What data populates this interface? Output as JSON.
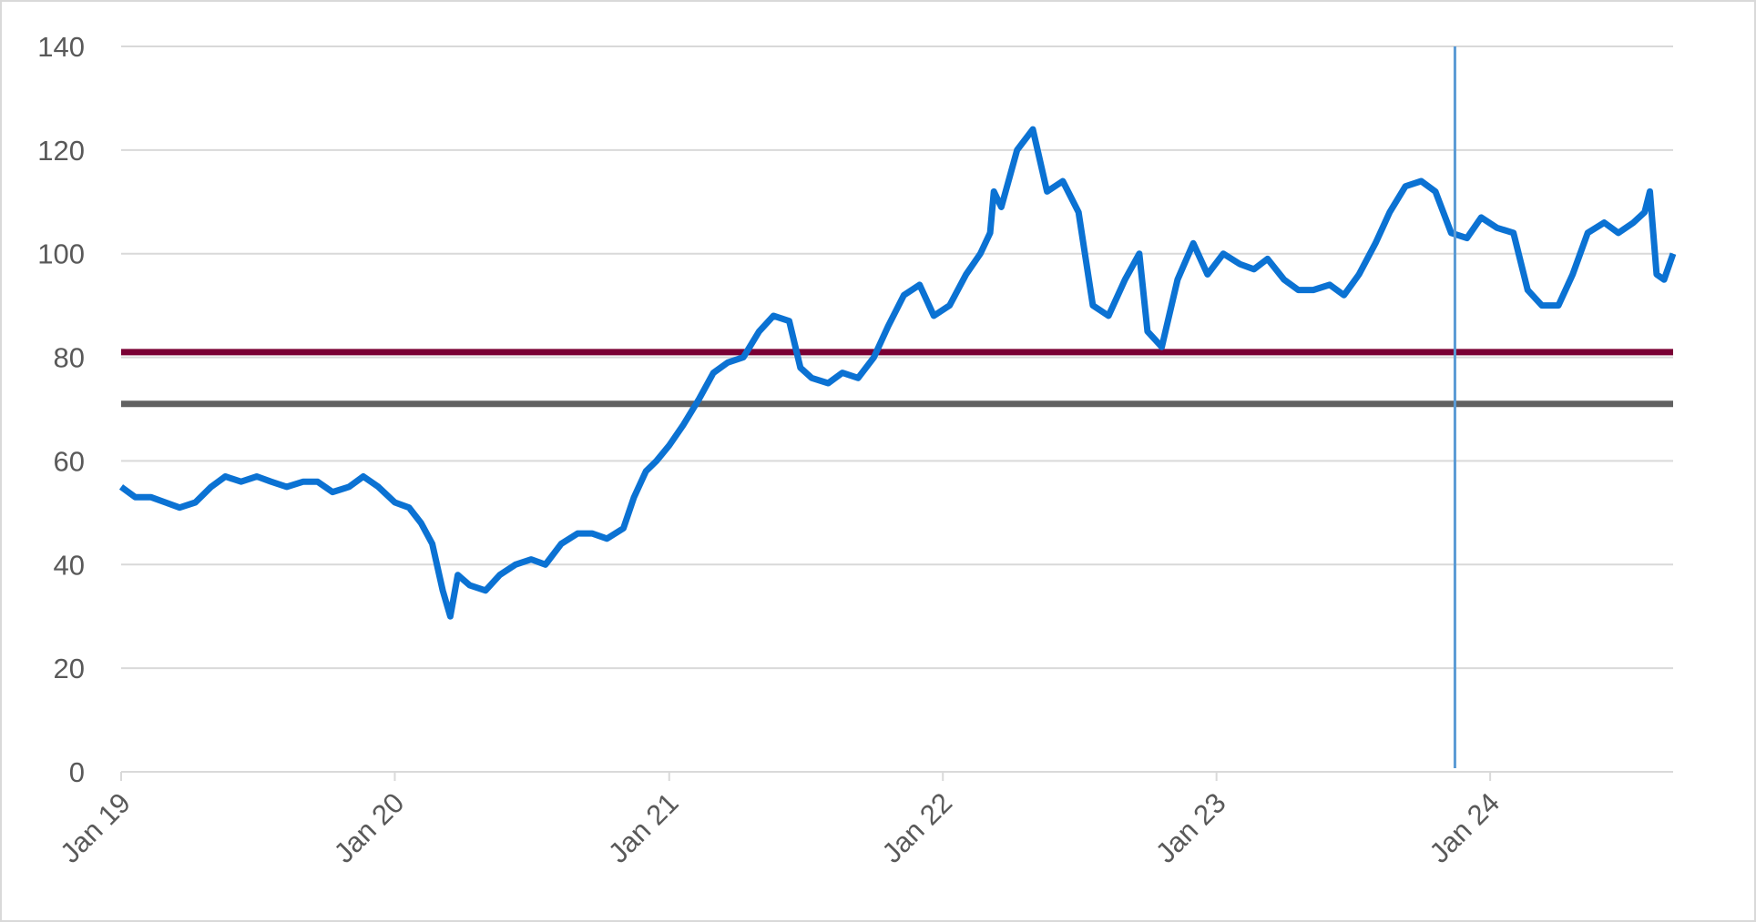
{
  "chart_data": {
    "type": "line",
    "title": "",
    "xlabel": "",
    "ylabel": "",
    "ylim": [
      0,
      140
    ],
    "xlim": [
      "2019-01-01",
      "2024-09-01"
    ],
    "y_ticks": [
      "0",
      "20",
      "40",
      "60",
      "80",
      "100",
      "120",
      "140"
    ],
    "x_ticks": [
      {
        "label": "Jan 19",
        "date": "2019-01-01"
      },
      {
        "label": "Jan 20",
        "date": "2020-01-01"
      },
      {
        "label": "Jan 21",
        "date": "2021-01-01"
      },
      {
        "label": "Jan 22",
        "date": "2022-01-01"
      },
      {
        "label": "Jan 23",
        "date": "2023-01-01"
      },
      {
        "label": "Jan 24",
        "date": "2024-01-01"
      }
    ],
    "grid": true,
    "legend": "none",
    "series": [
      {
        "color": "#0b72d3",
        "x": [
          "2019-01-01",
          "2019-01-20",
          "2019-02-10",
          "2019-03-01",
          "2019-03-20",
          "2019-04-10",
          "2019-05-01",
          "2019-05-20",
          "2019-06-10",
          "2019-07-01",
          "2019-07-20",
          "2019-08-10",
          "2019-09-01",
          "2019-09-20",
          "2019-10-10",
          "2019-11-01",
          "2019-11-20",
          "2019-12-10",
          "2020-01-01",
          "2020-01-20",
          "2020-02-05",
          "2020-02-20",
          "2020-03-05",
          "2020-03-15",
          "2020-03-25",
          "2020-04-10",
          "2020-05-01",
          "2020-05-20",
          "2020-06-10",
          "2020-07-01",
          "2020-07-20",
          "2020-08-10",
          "2020-09-01",
          "2020-09-20",
          "2020-10-10",
          "2020-11-01",
          "2020-11-15",
          "2020-12-01",
          "2020-12-15",
          "2021-01-01",
          "2021-01-20",
          "2021-02-10",
          "2021-03-01",
          "2021-03-20",
          "2021-04-10",
          "2021-05-01",
          "2021-05-20",
          "2021-06-10",
          "2021-06-25",
          "2021-07-10",
          "2021-08-01",
          "2021-08-20",
          "2021-09-10",
          "2021-10-01",
          "2021-10-20",
          "2021-11-10",
          "2021-12-01",
          "2021-12-20",
          "2022-01-10",
          "2022-02-01",
          "2022-02-20",
          "2022-03-05",
          "2022-03-10",
          "2022-03-20",
          "2022-04-10",
          "2022-05-01",
          "2022-05-20",
          "2022-06-10",
          "2022-07-01",
          "2022-07-20",
          "2022-08-10",
          "2022-09-01",
          "2022-09-20",
          "2022-10-01",
          "2022-10-20",
          "2022-11-10",
          "2022-12-01",
          "2022-12-20",
          "2023-01-10",
          "2023-02-01",
          "2023-02-20",
          "2023-03-10",
          "2023-04-01",
          "2023-04-20",
          "2023-05-10",
          "2023-06-01",
          "2023-06-20",
          "2023-07-10",
          "2023-08-01",
          "2023-08-20",
          "2023-09-10",
          "2023-10-01",
          "2023-10-20",
          "2023-11-10",
          "2023-12-01",
          "2023-12-20",
          "2024-01-10",
          "2024-02-01",
          "2024-02-20",
          "2024-03-10",
          "2024-04-01",
          "2024-04-20",
          "2024-05-10",
          "2024-06-01",
          "2024-06-20",
          "2024-07-10",
          "2024-07-25",
          "2024-08-01",
          "2024-08-10",
          "2024-08-20",
          "2024-09-01"
        ],
        "values": [
          55,
          53,
          53,
          52,
          51,
          52,
          55,
          57,
          56,
          57,
          56,
          55,
          56,
          56,
          54,
          55,
          57,
          55,
          52,
          51,
          48,
          44,
          35,
          30,
          38,
          36,
          35,
          38,
          40,
          41,
          40,
          44,
          46,
          46,
          45,
          47,
          53,
          58,
          60,
          63,
          67,
          72,
          77,
          79,
          80,
          85,
          88,
          87,
          78,
          76,
          75,
          77,
          76,
          80,
          86,
          92,
          94,
          88,
          90,
          96,
          100,
          104,
          112,
          109,
          120,
          124,
          112,
          114,
          108,
          90,
          88,
          95,
          100,
          85,
          82,
          95,
          102,
          96,
          100,
          98,
          97,
          99,
          95,
          93,
          93,
          94,
          92,
          96,
          102,
          108,
          113,
          114,
          112,
          104,
          103,
          107,
          105,
          104,
          93,
          90,
          90,
          96,
          104,
          106,
          104,
          106,
          108,
          112,
          96,
          95,
          100
        ]
      },
      {
        "color": "#7a0034",
        "x": [
          "2019-01-01",
          "2024-09-01"
        ],
        "values": [
          81,
          81
        ]
      },
      {
        "color": "#616161",
        "x": [
          "2019-01-01",
          "2024-09-01"
        ],
        "values": [
          71,
          71
        ]
      }
    ],
    "annotations": [
      {
        "type": "vline",
        "x": "2023-11-15",
        "color": "#5b9bd5"
      }
    ]
  }
}
